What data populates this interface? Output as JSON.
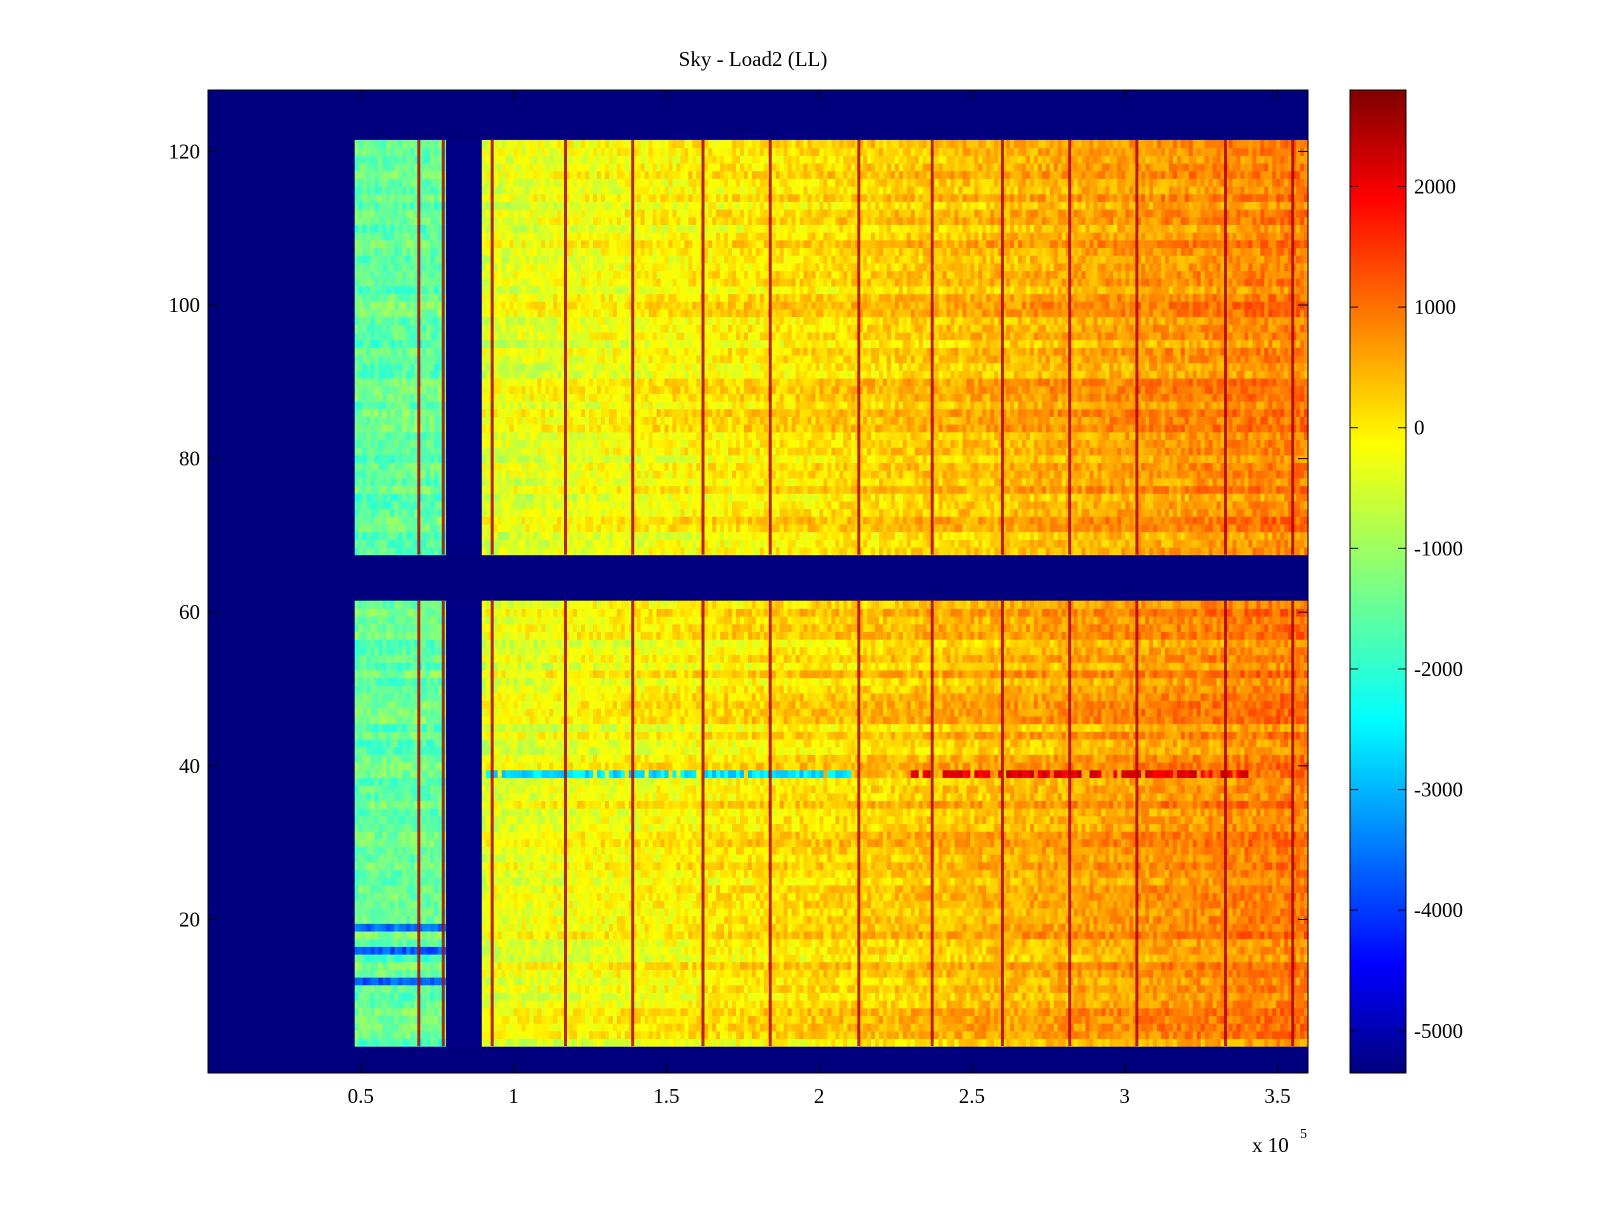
{
  "chart_data": {
    "type": "heatmap",
    "title": "Sky - Load2 (LL)",
    "xlabel": "",
    "ylabel": "",
    "x_exponent_label": "x 10",
    "x_exponent_power": "5",
    "xlim": [
      0,
      3.6
    ],
    "ylim": [
      0,
      128
    ],
    "x_ticks": [
      0.5,
      1,
      1.5,
      2,
      2.5,
      3,
      3.5
    ],
    "x_tick_labels": [
      "0.5",
      "1",
      "1.5",
      "2",
      "2.5",
      "3",
      "3.5"
    ],
    "y_ticks": [
      20,
      40,
      60,
      80,
      100,
      120
    ],
    "y_tick_labels": [
      "20",
      "40",
      "60",
      "80",
      "100",
      "120"
    ],
    "colorbar": {
      "range": [
        -5350,
        2800
      ],
      "ticks": [
        2000,
        1000,
        0,
        -1000,
        -2000,
        -3000,
        -4000,
        -5000
      ],
      "tick_labels": [
        "2000",
        "1000",
        "0",
        "-1000",
        "-2000",
        "-3000",
        "-4000",
        "-5000"
      ],
      "colormap": "jet"
    },
    "grid": false,
    "legend": "none",
    "data_regions": {
      "background_value": -5350,
      "x_start": 0.48,
      "x_end": 3.6,
      "y_bands": [
        [
          4,
          61
        ],
        [
          68,
          121
        ]
      ],
      "low_segment": {
        "x": [
          0.48,
          0.78
        ],
        "value": -1500
      },
      "gap_segment": {
        "x": [
          0.78,
          0.9
        ],
        "value": -5300
      },
      "ramp_segment": {
        "x": [
          0.9,
          3.6
        ],
        "value_start": -500,
        "value_end": 800
      },
      "vertical_stripes_x": [
        0.69,
        0.77,
        0.93,
        1.17,
        1.39,
        1.62,
        1.84,
        2.13,
        2.37,
        2.6,
        2.82,
        3.04,
        3.33,
        3.55
      ],
      "anomaly_row": {
        "y": 39,
        "cold_x": [
          0.9,
          2.1
        ],
        "cold_value": -2500,
        "hot_x": [
          2.3,
          3.4
        ],
        "hot_value": 2000
      },
      "cold_rows": [
        19,
        16,
        12
      ]
    }
  }
}
